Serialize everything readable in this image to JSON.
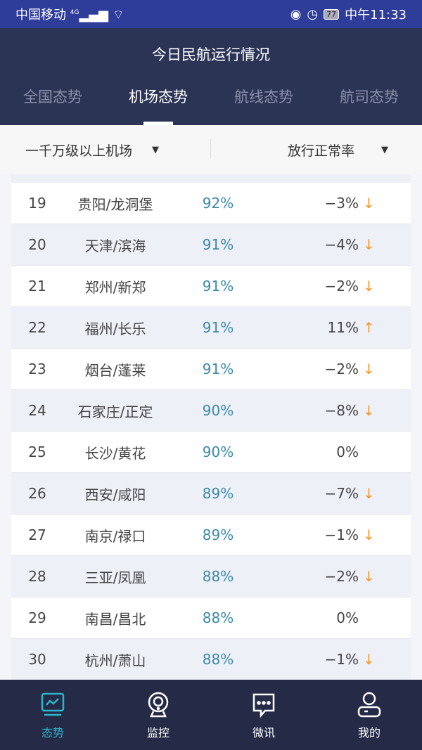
{
  "status": {
    "carrier": "中国移动",
    "network": "4G",
    "battery": "77",
    "time": "中午11:33"
  },
  "header": {
    "title": "今日民航运行情况",
    "tabs": [
      {
        "label": "全国态势"
      },
      {
        "label": "机场态势",
        "active": true
      },
      {
        "label": "航线态势"
      },
      {
        "label": "航司态势"
      }
    ]
  },
  "filters": {
    "category": "一千万级以上机场",
    "metric": "放行正常率"
  },
  "colors": {
    "accent": "#2db5c8",
    "down": "#f09a30",
    "pct": "#3a8aa8",
    "header": "#2c3456"
  },
  "rows": [
    {
      "rank": "19",
      "name": "贵阳/龙洞堡",
      "pct": "92%",
      "change": "−3%",
      "trend": "down"
    },
    {
      "rank": "20",
      "name": "天津/滨海",
      "pct": "91%",
      "change": "−4%",
      "trend": "down"
    },
    {
      "rank": "21",
      "name": "郑州/新郑",
      "pct": "91%",
      "change": "−2%",
      "trend": "down"
    },
    {
      "rank": "22",
      "name": "福州/长乐",
      "pct": "91%",
      "change": "11%",
      "trend": "up"
    },
    {
      "rank": "23",
      "name": "烟台/蓬莱",
      "pct": "91%",
      "change": "−2%",
      "trend": "down"
    },
    {
      "rank": "24",
      "name": "石家庄/正定",
      "pct": "90%",
      "change": "−8%",
      "trend": "down"
    },
    {
      "rank": "25",
      "name": "长沙/黄花",
      "pct": "90%",
      "change": "0%",
      "trend": "none"
    },
    {
      "rank": "26",
      "name": "西安/咸阳",
      "pct": "89%",
      "change": "−7%",
      "trend": "down"
    },
    {
      "rank": "27",
      "name": "南京/禄口",
      "pct": "89%",
      "change": "−1%",
      "trend": "down"
    },
    {
      "rank": "28",
      "name": "三亚/凤凰",
      "pct": "88%",
      "change": "−2%",
      "trend": "down"
    },
    {
      "rank": "29",
      "name": "南昌/昌北",
      "pct": "88%",
      "change": "0%",
      "trend": "none"
    },
    {
      "rank": "30",
      "name": "杭州/萧山",
      "pct": "88%",
      "change": "−1%",
      "trend": "down"
    }
  ],
  "nav": [
    {
      "label": "态势",
      "icon": "chart-monitor-icon",
      "active": true
    },
    {
      "label": "监控",
      "icon": "camera-icon"
    },
    {
      "label": "微讯",
      "icon": "chat-icon"
    },
    {
      "label": "我的",
      "icon": "user-icon"
    }
  ]
}
